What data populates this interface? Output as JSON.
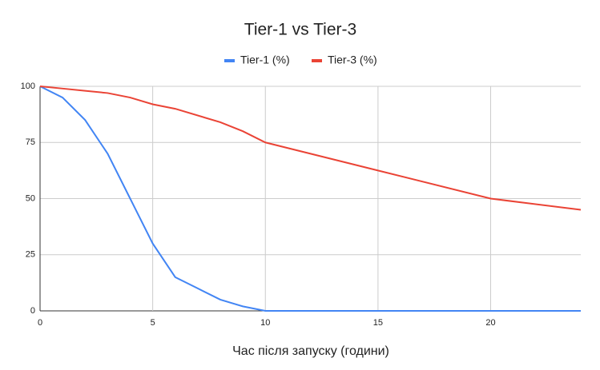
{
  "chart_data": {
    "type": "line",
    "title": "Tier-1 vs Tier-3",
    "x_label": "Час після запуску (години)",
    "xlim": [
      0,
      24
    ],
    "xticks": [
      0,
      5,
      10,
      15,
      20
    ],
    "ylim": [
      0,
      100
    ],
    "yticks": [
      0,
      25,
      50,
      75,
      100
    ],
    "grid": true,
    "legend": "top",
    "series": [
      {
        "name": "Tier-1 (%)",
        "color": "#4285f4",
        "x": [
          0,
          1,
          2,
          3,
          4,
          5,
          6,
          7,
          8,
          9,
          10,
          15,
          20,
          24
        ],
        "values": [
          100,
          95,
          85,
          70,
          50,
          30,
          15,
          10,
          5,
          2,
          0,
          0,
          0,
          0
        ]
      },
      {
        "name": "Tier-3 (%)",
        "color": "#ea4335",
        "x": [
          0,
          1,
          2,
          3,
          4,
          5,
          6,
          8,
          9,
          10,
          15,
          20,
          24
        ],
        "values": [
          100,
          99,
          98,
          97,
          95,
          92,
          90,
          84,
          80,
          75,
          62.5,
          50,
          45
        ]
      }
    ]
  }
}
